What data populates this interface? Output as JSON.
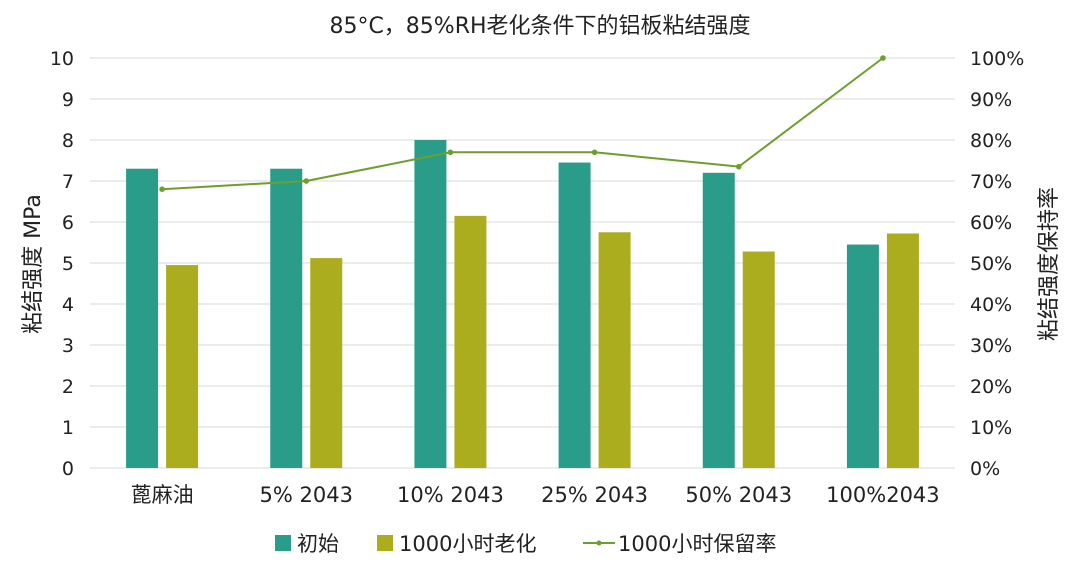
{
  "colors": {
    "initial": "#2a9d8a",
    "aged": "#acad1e",
    "retention": "#6e9e2c"
  },
  "chart_data": {
    "type": "bar",
    "title": "85°C，85%RH老化条件下的铝板粘结强度",
    "categories": [
      "蓖麻油",
      "5% 2043",
      "10% 2043",
      "25% 2043",
      "50% 2043",
      "100%2043"
    ],
    "series": [
      {
        "name": "初始",
        "type": "bar",
        "axis": "left",
        "values": [
          7.3,
          7.3,
          8.0,
          7.45,
          7.2,
          5.45
        ]
      },
      {
        "name": "1000小时老化",
        "type": "bar",
        "axis": "left",
        "values": [
          4.95,
          5.12,
          6.15,
          5.75,
          5.28,
          5.72
        ]
      },
      {
        "name": "1000小时保留率",
        "type": "line",
        "axis": "right",
        "values": [
          0.68,
          0.7,
          0.77,
          0.77,
          0.735,
          1.0
        ]
      }
    ],
    "ylabel": "粘结强度 MPa",
    "ylim": [
      0,
      10
    ],
    "yticks": [
      "0",
      "1",
      "2",
      "3",
      "4",
      "5",
      "6",
      "7",
      "8",
      "9",
      "10"
    ],
    "y2label": "粘结强度保持率",
    "y2lim": [
      0,
      1
    ],
    "y2ticks": [
      "0%",
      "10%",
      "20%",
      "30%",
      "40%",
      "50%",
      "60%",
      "70%",
      "80%",
      "90%",
      "100%"
    ],
    "grid": true,
    "legend": "bottom"
  }
}
